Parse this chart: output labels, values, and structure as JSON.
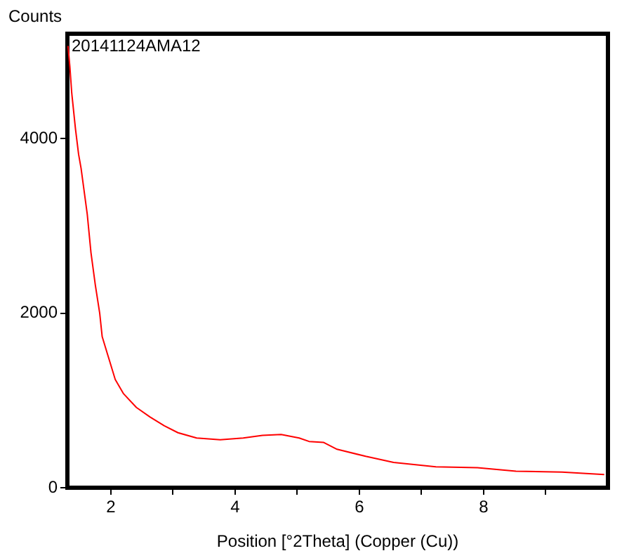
{
  "chart_data": {
    "type": "line",
    "xlabel": "Position [°2Theta] (Copper (Cu))",
    "ylabel": "Counts",
    "annotations": [
      "20141124AMA12"
    ],
    "xlim": [
      1.3,
      10
    ],
    "ylim": [
      0,
      5200
    ],
    "xticks": [
      2,
      {
        "value": 3,
        "label": null
      },
      4,
      {
        "value": 5,
        "label": null
      },
      6,
      {
        "value": 7,
        "label": null
      },
      8,
      {
        "value": 9,
        "label": null
      }
    ],
    "yticks": [
      0,
      2000,
      4000
    ],
    "grid": false,
    "legend": false,
    "marker": "none",
    "line_style": "solid",
    "series": [
      {
        "color": "#ff0000",
        "x": [
          1.31,
          1.34,
          1.37,
          1.43,
          1.48,
          1.52,
          1.62,
          1.68,
          1.75,
          1.82,
          1.86,
          1.95,
          2.07,
          2.2,
          2.41,
          2.63,
          2.86,
          3.08,
          3.38,
          3.76,
          4.13,
          4.44,
          4.74,
          5.03,
          5.19,
          5.42,
          5.64,
          6.1,
          6.55,
          7.23,
          7.9,
          8.52,
          9.26,
          9.94
        ],
        "values": [
          5060,
          4820,
          4520,
          4110,
          3820,
          3660,
          3130,
          2690,
          2320,
          2000,
          1730,
          1520,
          1240,
          1080,
          920,
          810,
          710,
          630,
          570,
          550,
          570,
          600,
          610,
          570,
          530,
          520,
          440,
          360,
          290,
          240,
          230,
          190,
          180,
          150
        ]
      }
    ]
  }
}
